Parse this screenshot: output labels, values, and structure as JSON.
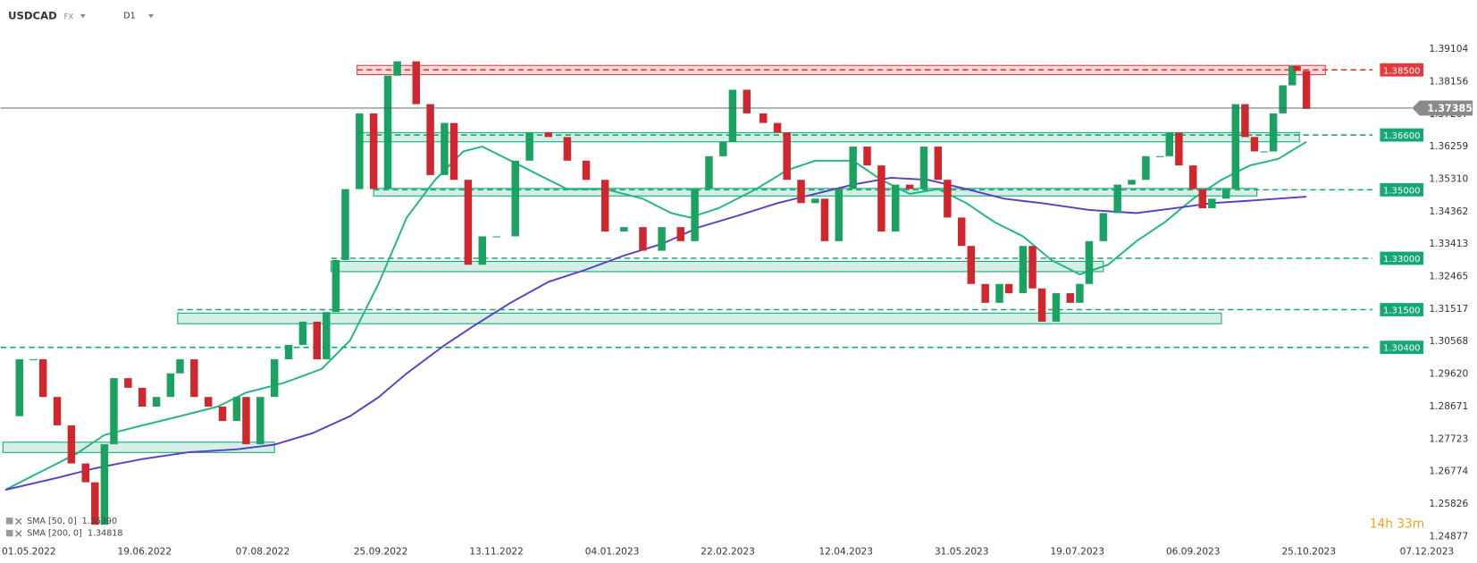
{
  "header": {
    "symbol": "USDCAD",
    "market": "FX",
    "interval": "D1",
    "countdown": "14h 33m"
  },
  "chart_data": {
    "type": "candlestick",
    "xlim": [
      -12,
      613
    ],
    "ylim": [
      1.24877,
      1.39104
    ],
    "xticks": [
      {
        "value": 0,
        "label": "01.05.2022"
      },
      {
        "value": 49,
        "label": "19.06.2022"
      },
      {
        "value": 99,
        "label": "07.08.2022"
      },
      {
        "value": 149,
        "label": "25.09.2022"
      },
      {
        "value": 198,
        "label": "13.11.2022"
      },
      {
        "value": 247,
        "label": "04.01.2023"
      },
      {
        "value": 296,
        "label": "22.02.2023"
      },
      {
        "value": 346,
        "label": "12.04.2023"
      },
      {
        "value": 395,
        "label": "31.05.2023"
      },
      {
        "value": 444,
        "label": "19.07.2023"
      },
      {
        "value": 493,
        "label": "06.09.2023"
      },
      {
        "value": 542,
        "label": "25.10.2023"
      },
      {
        "value": 592,
        "label": "07.12.2023"
      }
    ],
    "yticks": [
      1.39104,
      1.38156,
      1.37207,
      1.36259,
      {
        "value": 1.3531,
        "label": "1.35310"
      },
      1.34362,
      1.33413,
      1.32465,
      1.31517,
      1.30568,
      {
        "value": 1.2962,
        "label": "1.29620"
      },
      1.28671,
      1.27723,
      1.26774,
      1.25826,
      1.24877
    ],
    "price": {
      "up_color": "#1aa260",
      "down_color": "#d0272f",
      "x": [
        -10,
        -4,
        2,
        6,
        12,
        18,
        24,
        28,
        32,
        36,
        42,
        48,
        54,
        60,
        64,
        70,
        76,
        82,
        88,
        92,
        98,
        104,
        110,
        116,
        122,
        126,
        130,
        134,
        140,
        146,
        152,
        156,
        164,
        170,
        176,
        180,
        186,
        192,
        198,
        206,
        212,
        220,
        228,
        236,
        244,
        252,
        260,
        268,
        276,
        282,
        288,
        294,
        298,
        304,
        311,
        317,
        321,
        327,
        333,
        337,
        343,
        349,
        355,
        361,
        367,
        373,
        379,
        385,
        389,
        395,
        399,
        405,
        411,
        415,
        421,
        425,
        429,
        435,
        441,
        445,
        449,
        455,
        461,
        467,
        473,
        479,
        483,
        487,
        493,
        497,
        501,
        507,
        511,
        515,
        519,
        523,
        527,
        531,
        535,
        537,
        541
      ],
      "values": [
        1.2839,
        1.3005,
        1.3005,
        1.2895,
        1.2812,
        1.2701,
        1.2646,
        1.2522,
        1.2757,
        1.295,
        1.2922,
        1.2867,
        1.2895,
        1.2964,
        1.3005,
        1.2895,
        1.2867,
        1.2825,
        1.2895,
        1.2757,
        1.2895,
        1.3005,
        1.3047,
        1.3115,
        1.3005,
        1.3143,
        1.3295,
        1.3502,
        1.3723,
        1.3502,
        1.3833,
        1.3875,
        1.375,
        1.3543,
        1.3695,
        1.3529,
        1.3281,
        1.3364,
        1.3364,
        1.3585,
        1.3667,
        1.3654,
        1.3585,
        1.3529,
        1.3378,
        1.3391,
        1.3322,
        1.3391,
        1.335,
        1.3502,
        1.3598,
        1.364,
        1.3792,
        1.3723,
        1.3695,
        1.3667,
        1.3529,
        1.3461,
        1.3474,
        1.335,
        1.3502,
        1.3626,
        1.3571,
        1.3378,
        1.3515,
        1.3502,
        1.3626,
        1.3529,
        1.3419,
        1.3336,
        1.3225,
        1.317,
        1.3225,
        1.3198,
        1.3336,
        1.3212,
        1.3115,
        1.3198,
        1.317,
        1.3225,
        1.335,
        1.3432,
        1.3515,
        1.3529,
        1.3598,
        1.3598,
        1.3667,
        1.3571,
        1.3502,
        1.3446,
        1.3474,
        1.3502,
        1.375,
        1.3654,
        1.3612,
        1.3612,
        1.3723,
        1.3805,
        1.3861,
        1.3847,
        1.3736
      ]
    },
    "last": {
      "value": 1.37385,
      "label": "1.37385",
      "color": "#8a8a8a"
    },
    "series": [
      {
        "name": "SMA [50, 0]",
        "last": "1.36390",
        "color": "#1bb57e",
        "x": [
          -10,
          4,
          20,
          32,
          48,
          64,
          80,
          92,
          108,
          124,
          136,
          148,
          160,
          172,
          184,
          192,
          204,
          216,
          228,
          244,
          260,
          272,
          280,
          292,
          308,
          321,
          333,
          349,
          361,
          373,
          385,
          397,
          409,
          421,
          433,
          445,
          457,
          469,
          481,
          493,
          505,
          517,
          529,
          541
        ],
        "values": [
          1.2624,
          1.2673,
          1.2729,
          1.2784,
          1.2812,
          1.2839,
          1.2867,
          1.2908,
          1.2936,
          1.2977,
          1.306,
          1.3225,
          1.3419,
          1.3529,
          1.3612,
          1.3626,
          1.3585,
          1.3543,
          1.3502,
          1.3502,
          1.3474,
          1.3432,
          1.3419,
          1.3446,
          1.3502,
          1.3557,
          1.3585,
          1.3585,
          1.3529,
          1.3488,
          1.3502,
          1.3461,
          1.3405,
          1.3364,
          1.3295,
          1.3253,
          1.3281,
          1.335,
          1.3405,
          1.3474,
          1.3529,
          1.3571,
          1.359,
          1.364
        ]
      },
      {
        "name": "SMA [200, 0]",
        "last": "1.34818",
        "color": "#5a3cc8",
        "x": [
          -10,
          12,
          28,
          48,
          68,
          88,
          104,
          120,
          136,
          148,
          160,
          176,
          188,
          204,
          220,
          236,
          252,
          268,
          284,
          300,
          317,
          333,
          349,
          365,
          381,
          397,
          413,
          429,
          449,
          469,
          485,
          501,
          517,
          541
        ],
        "values": [
          1.2624,
          1.2659,
          1.2687,
          1.2714,
          1.2734,
          1.2742,
          1.2756,
          1.2789,
          1.2839,
          1.2894,
          1.2964,
          1.3046,
          1.3101,
          1.317,
          1.3231,
          1.3267,
          1.3308,
          1.3342,
          1.3391,
          1.3424,
          1.3461,
          1.3488,
          1.3515,
          1.3535,
          1.3529,
          1.3502,
          1.3474,
          1.3461,
          1.3441,
          1.3432,
          1.3446,
          1.3461,
          1.3468,
          1.348
        ]
      }
    ],
    "levels": [
      {
        "value": 1.385,
        "label": "1.38500",
        "color": "#e5393b",
        "zone": {
          "x": [
            139,
            549
          ],
          "y": [
            1.3836,
            1.3863
          ]
        }
      },
      {
        "value": 1.366,
        "label": "1.36600",
        "color": "#13a874",
        "zone": {
          "x": [
            139,
            538
          ],
          "y": [
            1.364,
            1.3667
          ]
        }
      },
      {
        "value": 1.35,
        "label": "1.35000",
        "color": "#13a874",
        "zone": {
          "x": [
            146,
            520
          ],
          "y": [
            1.3482,
            1.3504
          ]
        }
      },
      {
        "value": 1.33,
        "label": "1.33000",
        "color": "#13a874",
        "zone": {
          "x": [
            128,
            455
          ],
          "y": [
            1.3261,
            1.3291
          ]
        }
      },
      {
        "value": 1.315,
        "label": "1.31500",
        "color": "#13a874",
        "zone": {
          "x": [
            63,
            505
          ],
          "y": [
            1.3109,
            1.314
          ]
        }
      },
      {
        "value": 1.304,
        "label": "1.30400",
        "color": "#13a874"
      }
    ],
    "zones": [
      {
        "x": [
          -11,
          104
        ],
        "y": [
          1.2733,
          1.2763
        ],
        "color": "#13a874"
      }
    ]
  }
}
